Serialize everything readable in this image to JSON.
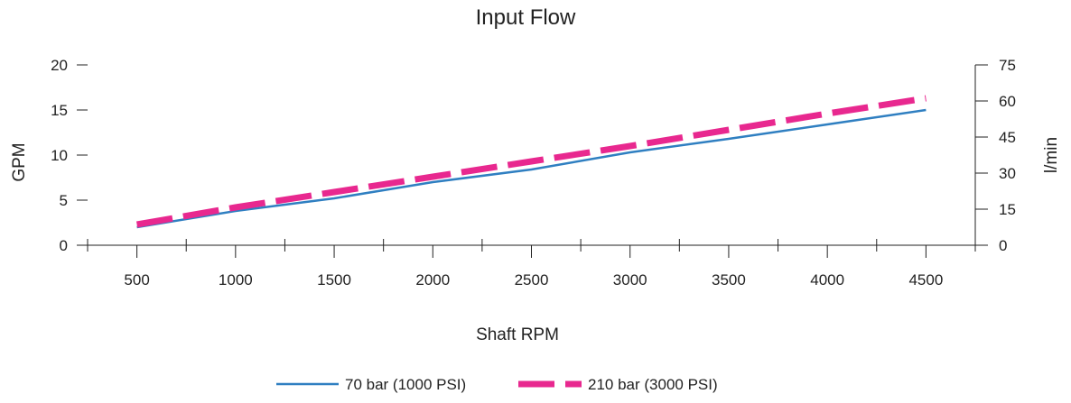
{
  "chart_data": {
    "type": "line",
    "title": "Input Flow",
    "xlabel": "Shaft RPM",
    "ylabel": "GPM",
    "y2label": "l/min",
    "x_ticks": [
      500,
      1000,
      1500,
      2000,
      2500,
      3000,
      3500,
      4000,
      4500
    ],
    "xlim": [
      250,
      4750
    ],
    "y_ticks": [
      0,
      5,
      10,
      15,
      20
    ],
    "ylim": [
      0,
      20
    ],
    "y2_ticks": [
      0,
      15,
      30,
      45,
      60,
      75
    ],
    "y2lim": [
      0,
      75
    ],
    "grid": false,
    "legend_position": "bottom-center",
    "series": [
      {
        "name": "70 bar (1000 PSI)",
        "color": "#2f7fc1",
        "style": "solid",
        "x": [
          500,
          1000,
          1500,
          2000,
          2500,
          3000,
          3500,
          4000,
          4500
        ],
        "values": [
          2.0,
          3.8,
          5.2,
          7.0,
          8.4,
          10.3,
          11.8,
          13.4,
          15.0
        ]
      },
      {
        "name": "210 bar (3000 PSI)",
        "color": "#e8288f",
        "style": "dashed",
        "x": [
          500,
          1000,
          1500,
          2000,
          2500,
          3000,
          3500,
          4000,
          4500
        ],
        "values": [
          2.3,
          4.2,
          5.9,
          7.6,
          9.3,
          11.0,
          12.8,
          14.6,
          16.3
        ]
      }
    ]
  }
}
